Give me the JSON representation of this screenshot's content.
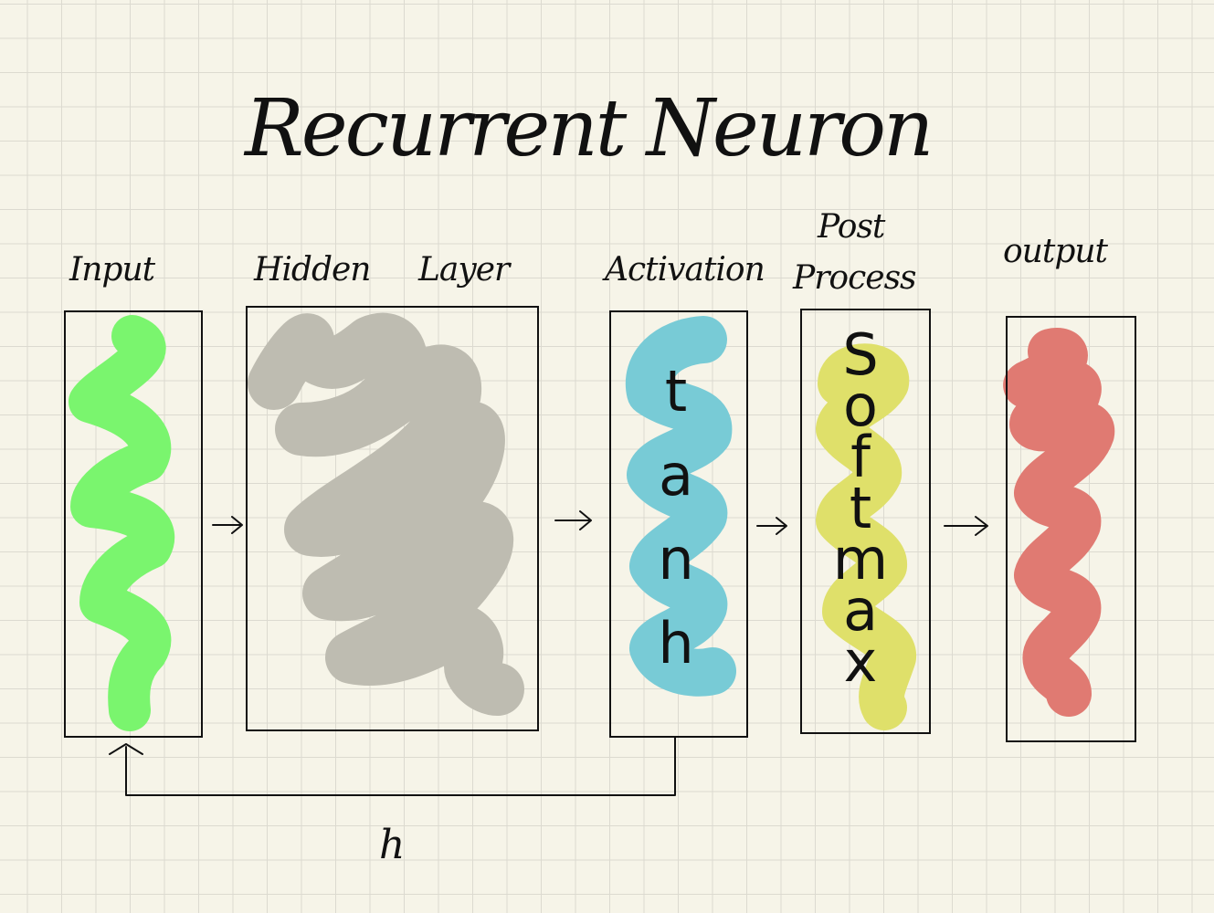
{
  "title": "Recurrent Neuron",
  "colors": {
    "paper": "#f6f4e8",
    "grid": "#dcdad0",
    "ink": "#111111",
    "input": "#7af56e",
    "hidden": "#bebcb1",
    "activation": "#78cbd6",
    "post_process": "#dfe06a",
    "output": "#e07a72"
  },
  "labels": {
    "input": "Input",
    "hidden_1": "Hidden",
    "hidden_2": "Layer",
    "activation": "Activation",
    "post_1": "Post",
    "post_2": "Process",
    "output": "output",
    "feedback": "h"
  },
  "activation_letters": [
    "t",
    "a",
    "n",
    "h"
  ],
  "post_letters": [
    "S",
    "o",
    "f",
    "t",
    "m",
    "a",
    "x"
  ]
}
